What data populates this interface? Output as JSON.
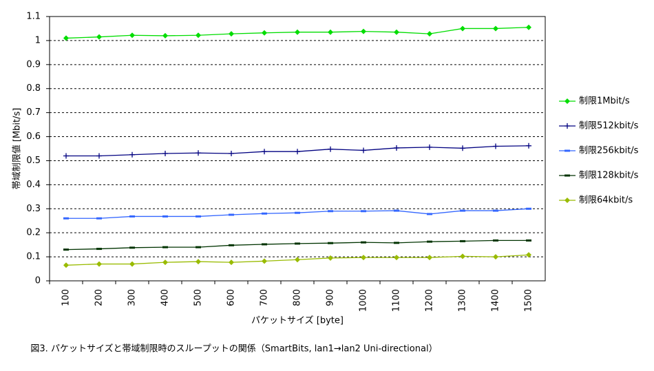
{
  "chart_data": {
    "type": "line",
    "title": "図3. パケットサイズと帯域制限時のスループットの関係（SmartBits, lan1→lan2 Uni-directional）",
    "x_label": "パケットサイズ [byte]",
    "y_label": "帯域制限値 [Mbit/s]",
    "categories": [
      "100",
      "200",
      "300",
      "400",
      "500",
      "600",
      "700",
      "800",
      "900",
      "1000",
      "1100",
      "1200",
      "1300",
      "1400",
      "1500"
    ],
    "series": [
      {
        "name": "制限1Mbit/s",
        "color": "#00dd00",
        "marker": "diamond",
        "values": [
          1.01,
          1.015,
          1.022,
          1.02,
          1.022,
          1.028,
          1.032,
          1.035,
          1.035,
          1.038,
          1.035,
          1.028,
          1.05,
          1.05,
          1.055
        ]
      },
      {
        "name": "制限512kbit/s",
        "color": "#000080",
        "marker": "plus",
        "values": [
          0.52,
          0.52,
          0.525,
          0.53,
          0.532,
          0.53,
          0.538,
          0.538,
          0.548,
          0.543,
          0.553,
          0.556,
          0.552,
          0.56,
          0.562
        ]
      },
      {
        "name": "制限256kbit/s",
        "color": "#3366ff",
        "marker": "dash",
        "values": [
          0.26,
          0.26,
          0.268,
          0.268,
          0.268,
          0.275,
          0.28,
          0.283,
          0.29,
          0.29,
          0.292,
          0.278,
          0.292,
          0.292,
          0.3
        ]
      },
      {
        "name": "制限128kbit/s",
        "color": "#003300",
        "marker": "dash",
        "values": [
          0.13,
          0.133,
          0.138,
          0.14,
          0.14,
          0.148,
          0.152,
          0.155,
          0.157,
          0.16,
          0.158,
          0.163,
          0.165,
          0.168,
          0.168
        ]
      },
      {
        "name": "制限64kbit/s",
        "color": "#99bb00",
        "marker": "diamond",
        "values": [
          0.065,
          0.07,
          0.07,
          0.077,
          0.08,
          0.077,
          0.082,
          0.088,
          0.095,
          0.097,
          0.097,
          0.097,
          0.102,
          0.1,
          0.108
        ]
      }
    ],
    "ylim": [
      0,
      1.1
    ],
    "yticks": [
      0,
      0.1,
      0.2,
      0.3,
      0.4,
      0.5,
      0.6,
      0.7,
      0.8,
      0.9,
      1,
      1.1
    ],
    "grid": true,
    "legend": "right"
  }
}
